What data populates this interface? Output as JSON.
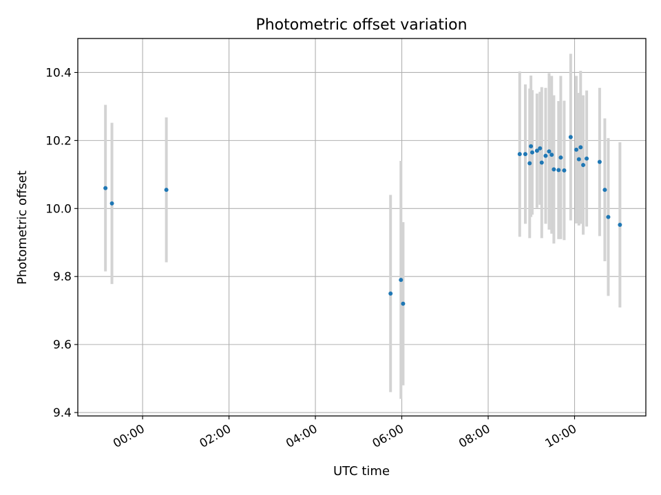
{
  "chart_data": {
    "type": "scatter",
    "title": "Photometric offset variation",
    "xlabel": "UTC time",
    "ylabel": "Photometric offset",
    "x_unit": "hours UTC",
    "xlim": [
      -1.5,
      11.65
    ],
    "ylim": [
      9.39,
      10.5
    ],
    "x_ticks": [
      {
        "value": 0,
        "label": "00:00"
      },
      {
        "value": 2,
        "label": "02:00"
      },
      {
        "value": 4,
        "label": "04:00"
      },
      {
        "value": 6,
        "label": "06:00"
      },
      {
        "value": 8,
        "label": "08:00"
      },
      {
        "value": 10,
        "label": "10:00"
      }
    ],
    "y_ticks": [
      {
        "value": 9.4,
        "label": "9.4"
      },
      {
        "value": 9.6,
        "label": "9.6"
      },
      {
        "value": 9.8,
        "label": "9.8"
      },
      {
        "value": 10.0,
        "label": "10.0"
      },
      {
        "value": 10.2,
        "label": "10.2"
      },
      {
        "value": 10.4,
        "label": "10.4"
      }
    ],
    "grid": true,
    "marker_color": "#1f77b4",
    "errorbar_color": "#d3d3d3",
    "points": [
      {
        "x": -0.86,
        "y": 10.06,
        "err": 0.245
      },
      {
        "x": -0.71,
        "y": 10.015,
        "err": 0.237
      },
      {
        "x": 0.55,
        "y": 10.055,
        "err": 0.213
      },
      {
        "x": 5.74,
        "y": 9.75,
        "err": 0.29
      },
      {
        "x": 5.98,
        "y": 9.79,
        "err": 0.35
      },
      {
        "x": 6.03,
        "y": 9.72,
        "err": 0.24
      },
      {
        "x": 8.73,
        "y": 10.16,
        "err": 0.243
      },
      {
        "x": 8.86,
        "y": 10.16,
        "err": 0.205
      },
      {
        "x": 8.96,
        "y": 10.133,
        "err": 0.22
      },
      {
        "x": 8.99,
        "y": 10.183,
        "err": 0.208
      },
      {
        "x": 9.02,
        "y": 10.165,
        "err": 0.183
      },
      {
        "x": 9.13,
        "y": 10.17,
        "err": 0.168
      },
      {
        "x": 9.2,
        "y": 10.177,
        "err": 0.166
      },
      {
        "x": 9.24,
        "y": 10.135,
        "err": 0.222
      },
      {
        "x": 9.33,
        "y": 10.155,
        "err": 0.2
      },
      {
        "x": 9.41,
        "y": 10.168,
        "err": 0.23
      },
      {
        "x": 9.47,
        "y": 10.158,
        "err": 0.232
      },
      {
        "x": 9.52,
        "y": 10.115,
        "err": 0.218
      },
      {
        "x": 9.63,
        "y": 10.113,
        "err": 0.203
      },
      {
        "x": 9.68,
        "y": 10.15,
        "err": 0.24
      },
      {
        "x": 9.76,
        "y": 10.112,
        "err": 0.205
      },
      {
        "x": 9.91,
        "y": 10.21,
        "err": 0.245
      },
      {
        "x": 10.04,
        "y": 10.173,
        "err": 0.217
      },
      {
        "x": 10.1,
        "y": 10.145,
        "err": 0.195
      },
      {
        "x": 10.14,
        "y": 10.18,
        "err": 0.225
      },
      {
        "x": 10.2,
        "y": 10.128,
        "err": 0.205
      },
      {
        "x": 10.28,
        "y": 10.147,
        "err": 0.2
      },
      {
        "x": 10.58,
        "y": 10.137,
        "err": 0.218
      },
      {
        "x": 10.7,
        "y": 10.055,
        "err": 0.21
      },
      {
        "x": 10.78,
        "y": 9.975,
        "err": 0.232
      },
      {
        "x": 11.05,
        "y": 9.952,
        "err": 0.243
      }
    ]
  }
}
